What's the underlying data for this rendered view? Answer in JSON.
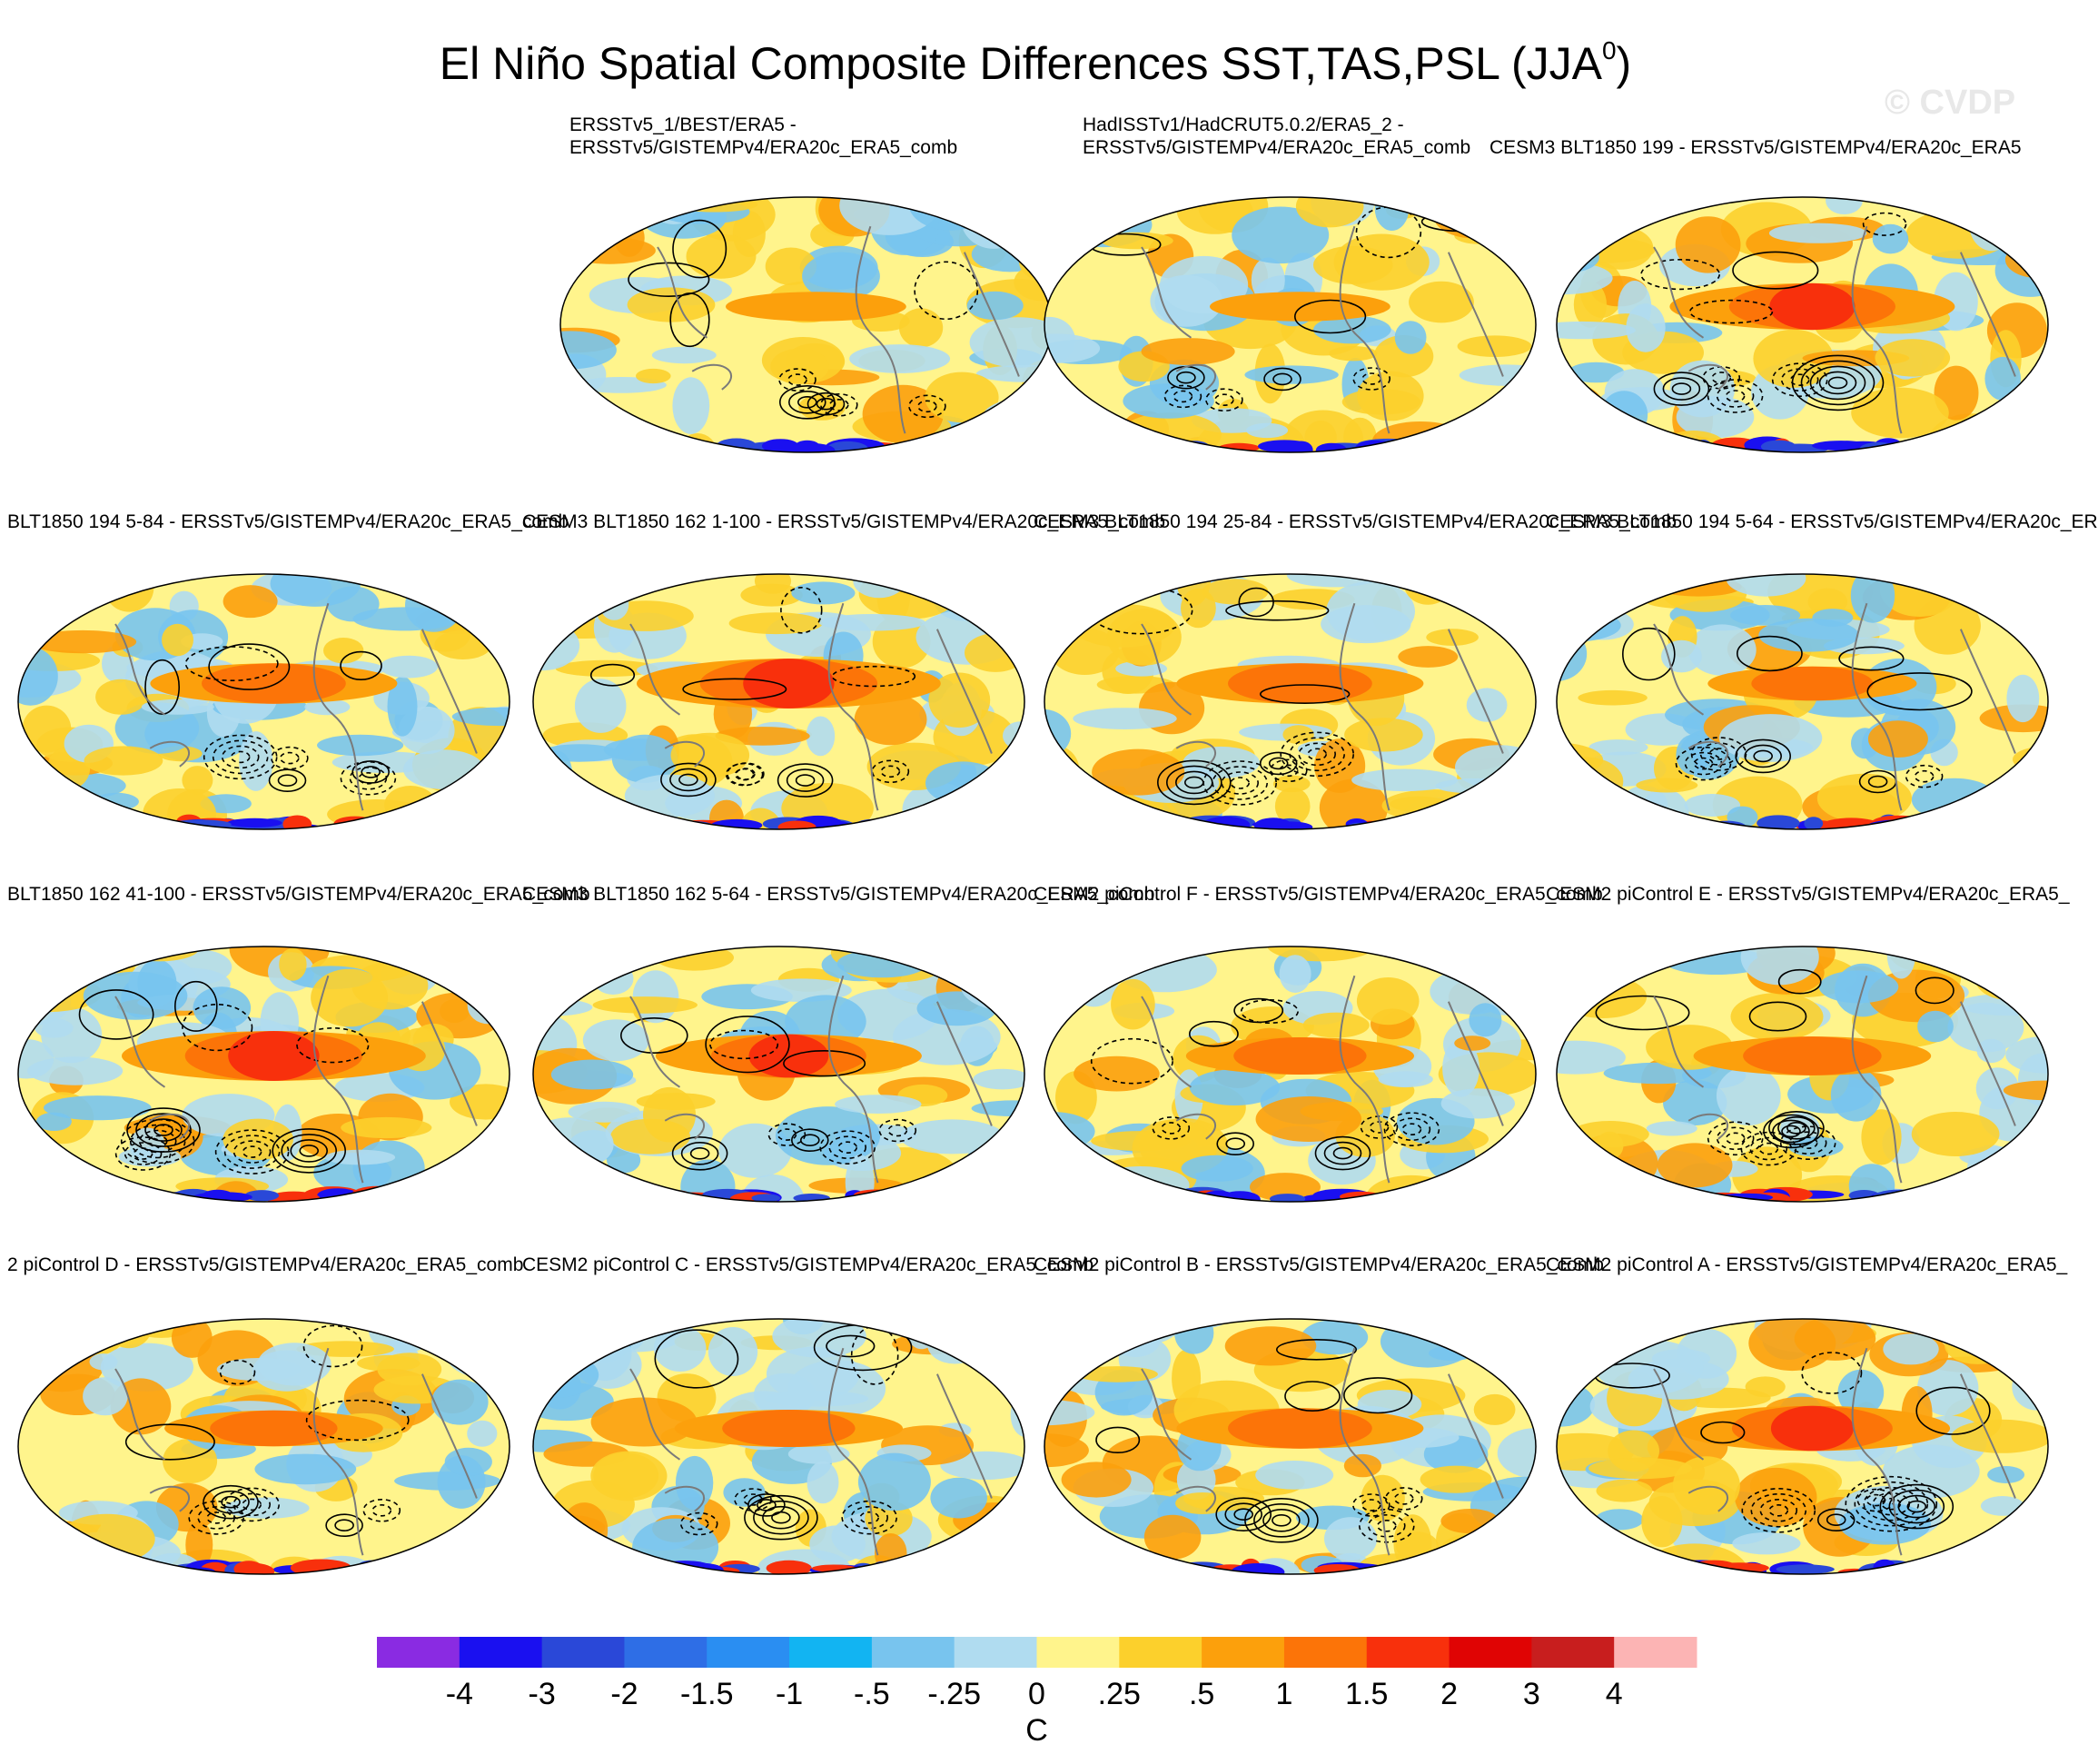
{
  "title": {
    "main": "El Niño Spatial Composite Differences SST,TAS,PSL (JJA",
    "sup": "0",
    "close": ")"
  },
  "watermark": "© CVDP",
  "panels": [
    {
      "id": "p1",
      "title": "ERSSTv5_1/BEST/ERA5 -\nERSSTv5/GISTEMPv4/ERA20c_ERA5_comb",
      "align": "left",
      "seed": 11,
      "strength": 0.35
    },
    {
      "id": "p2",
      "title": "HadISSTv1/HadCRUT5.0.2/ERA5_2 -\nERSSTv5/GISTEMPv4/ERA20c_ERA5_comb",
      "align": "left",
      "seed": 23,
      "strength": 0.35
    },
    {
      "id": "p3",
      "title": "CESM3 BLT1850 199 - ERSSTv5/GISTEMPv4/ERA20c_ERA5",
      "align": "left",
      "seed": 37,
      "strength": 0.9
    },
    {
      "id": "p4",
      "title": "BLT1850 194 5-84 - ERSSTv5/GISTEMPv4/ERA20c_ERA5_comb",
      "align": "right",
      "seed": 41,
      "strength": 0.7
    },
    {
      "id": "p5",
      "title": "CESM3 BLT1850 162 1-100 - ERSSTv5/GISTEMPv4/ERA20c_ERA5_comb",
      "align": "right",
      "seed": 53,
      "strength": 1.0
    },
    {
      "id": "p6",
      "title": "CESM3 BLT1850 194 25-84 - ERSSTv5/GISTEMPv4/ERA20c_ERA5_comb",
      "align": "right",
      "seed": 67,
      "strength": 0.7
    },
    {
      "id": "p7",
      "title": "CESM3 BLT1850 194 5-64 - ERSSTv5/GISTEMPv4/ERA20c_ER",
      "align": "left",
      "seed": 71,
      "strength": 0.5
    },
    {
      "id": "p8",
      "title": "BLT1850 162 41-100 - ERSSTv5/GISTEMPv4/ERA20c_ERA5_comb",
      "align": "right",
      "seed": 83,
      "strength": 1.0
    },
    {
      "id": "p9",
      "title": "CESM3 BLT1850 162 5-64 - ERSSTv5/GISTEMPv4/ERA20c_ERA5_comb",
      "align": "right",
      "seed": 97,
      "strength": 0.8
    },
    {
      "id": "p10",
      "title": "CESM2 piControl F - ERSSTv5/GISTEMPv4/ERA20c_ERA5_comb",
      "align": "right",
      "seed": 101,
      "strength": 0.6
    },
    {
      "id": "p11",
      "title": "CESM2 piControl E - ERSSTv5/GISTEMPv4/ERA20c_ERA5_",
      "align": "left",
      "seed": 113,
      "strength": 0.65
    },
    {
      "id": "p12",
      "title": "2 piControl D - ERSSTv5/GISTEMPv4/ERA20c_ERA5_comb",
      "align": "right",
      "seed": 127,
      "strength": 0.55
    },
    {
      "id": "p13",
      "title": "CESM2 piControl C - ERSSTv5/GISTEMPv4/ERA20c_ERA5_comb",
      "align": "right",
      "seed": 131,
      "strength": 0.6
    },
    {
      "id": "p14",
      "title": "CESM2 piControl B - ERSSTv5/GISTEMPv4/ERA20c_ERA5_comb",
      "align": "right",
      "seed": 139,
      "strength": 0.7
    },
    {
      "id": "p15",
      "title": "CESM2 piControl A - ERSSTv5/GISTEMPv4/ERA20c_ERA5_",
      "align": "left",
      "seed": 149,
      "strength": 0.85
    }
  ],
  "chart_data": {
    "type": "heatmap",
    "title": "El Niño Spatial Composite Differences SST,TAS,PSL (JJA0)",
    "colorbar": {
      "label": "C",
      "levels": [
        -4,
        -3,
        -2,
        -1.5,
        -1,
        -0.5,
        -0.25,
        0,
        0.25,
        0.5,
        1,
        1.5,
        2,
        3,
        4
      ],
      "tick_labels": [
        "-4",
        "-3",
        "-2",
        "-1.5",
        "-1",
        "-.5",
        "-.25",
        "0",
        ".25",
        ".5",
        "1",
        "1.5",
        "2",
        "3",
        "4"
      ],
      "colors": [
        "#8a2be2",
        "#1a10f0",
        "#2a48d8",
        "#2e6ee6",
        "#2a8ef2",
        "#12b4f2",
        "#78c4ee",
        "#b0dcf0",
        "#fff48c",
        "#fcd02c",
        "#fca00c",
        "#fc7408",
        "#f8300c",
        "#e00404",
        "#c81e1e",
        "#fcb4b4"
      ]
    }
  }
}
